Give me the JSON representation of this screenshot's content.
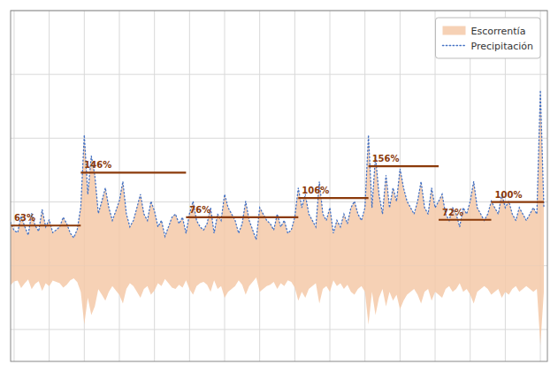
{
  "chart_data": {
    "type": "line",
    "x": [
      1859,
      1860,
      1861,
      1862,
      1863,
      1864,
      1865,
      1866,
      1867,
      1868,
      1869,
      1870,
      1871,
      1872,
      1873,
      1874,
      1875,
      1876,
      1877,
      1878,
      1879,
      1880,
      1881,
      1882,
      1883,
      1884,
      1885,
      1886,
      1887,
      1888,
      1889,
      1890,
      1891,
      1892,
      1893,
      1894,
      1895,
      1896,
      1897,
      1898,
      1899,
      1900,
      1901,
      1902,
      1903,
      1904,
      1905,
      1906,
      1907,
      1908,
      1909,
      1910,
      1911,
      1912,
      1913,
      1914,
      1915,
      1916,
      1917,
      1918,
      1919,
      1920,
      1921,
      1922,
      1923,
      1924,
      1925,
      1926,
      1927,
      1928,
      1929,
      1930,
      1931,
      1932,
      1933,
      1934,
      1935,
      1936,
      1937,
      1938,
      1939,
      1940,
      1941,
      1942,
      1943,
      1944,
      1945,
      1946,
      1947,
      1948,
      1949,
      1950,
      1951,
      1952,
      1953,
      1954,
      1955,
      1956,
      1957,
      1958,
      1959,
      1960,
      1961,
      1962,
      1963,
      1964,
      1965,
      1966,
      1967,
      1968,
      1969,
      1970,
      1971,
      1972,
      1973,
      1974,
      1975,
      1976,
      1977,
      1978,
      1979,
      1980,
      1981,
      1982,
      1983,
      1984,
      1985,
      1986,
      1987,
      1988,
      1989,
      1990,
      1991,
      1992,
      1993,
      1994,
      1995,
      1996,
      1997,
      1998,
      1999,
      2000,
      2001,
      2002,
      2003,
      2004,
      2005,
      2006,
      2007,
      2008,
      2009,
      2010,
      2011
    ],
    "series": [
      {
        "name": "Escorrentía",
        "type": "area",
        "color": "#f5c9a8",
        "values": [
          68,
          55,
          52,
          78,
          62,
          48,
          82,
          63,
          54,
          88,
          61,
          72,
          52,
          56,
          61,
          76,
          66,
          51,
          44,
          57,
          92,
          205,
          112,
          172,
          142,
          82,
          101,
          122,
          91,
          71,
          86,
          102,
          132,
          81,
          61,
          71,
          91,
          112,
          81,
          71,
          101,
          86,
          61,
          71,
          46,
          61,
          76,
          81,
          66,
          76,
          51,
          82,
          101,
          71,
          61,
          56,
          66,
          91,
          51,
          81,
          71,
          112,
          91,
          81,
          71,
          51,
          66,
          101,
          71,
          56,
          41,
          91,
          81,
          71,
          66,
          56,
          81,
          61,
          71,
          51,
          56,
          76,
          122,
          91,
          112,
          81,
          71,
          61,
          132,
          81,
          71,
          91,
          51,
          71,
          61,
          81,
          66,
          91,
          101,
          81,
          71,
          91,
          205,
          91,
          172,
          112,
          81,
          142,
          91,
          122,
          101,
          152,
          122,
          101,
          91,
          81,
          101,
          132,
          91,
          81,
          122,
          91,
          101,
          112,
          81,
          71,
          91,
          81,
          61,
          91,
          81,
          101,
          132,
          91,
          81,
          71,
          81,
          101,
          91,
          81,
          112,
          91,
          101,
          81,
          71,
          91,
          81,
          71,
          81,
          91,
          81,
          275,
          91
        ],
        "lower": [
          -30.6,
          -24.75,
          -23.4,
          -35.1,
          -27.9,
          -21.6,
          -36.9,
          -28.35,
          -24.3,
          -39.6,
          -27.45,
          -32.4,
          -23.4,
          -25.2,
          -27.45,
          -34.2,
          -29.7,
          -22.95,
          -19.8,
          -25.65,
          -41.4,
          -92.25,
          -50.4,
          -77.4,
          -63.9,
          -36.9,
          -45.45,
          -54.9,
          -40.95,
          -31.95,
          -38.7,
          -45.9,
          -59.4,
          -36.45,
          -27.45,
          -31.95,
          -40.95,
          -50.4,
          -36.45,
          -31.95,
          -45.45,
          -38.7,
          -27.45,
          -31.95,
          -20.7,
          -27.45,
          -34.2,
          -36.45,
          -29.7,
          -34.2,
          -22.95,
          -36.9,
          -45.45,
          -31.95,
          -27.45,
          -25.2,
          -29.7,
          -40.95,
          -22.95,
          -36.45,
          -31.95,
          -50.4,
          -40.95,
          -36.45,
          -31.95,
          -22.95,
          -29.7,
          -45.45,
          -31.95,
          -25.2,
          -18.45,
          -40.95,
          -36.45,
          -31.95,
          -29.7,
          -25.2,
          -36.45,
          -27.45,
          -31.95,
          -22.95,
          -25.2,
          -34.2,
          -54.9,
          -40.95,
          -50.4,
          -36.45,
          -31.95,
          -27.45,
          -59.4,
          -36.45,
          -31.95,
          -40.95,
          -22.95,
          -31.95,
          -27.45,
          -36.45,
          -29.7,
          -40.95,
          -45.45,
          -36.45,
          -31.95,
          -40.95,
          -92.25,
          -40.95,
          -77.4,
          -50.4,
          -36.45,
          -63.9,
          -40.95,
          -54.9,
          -45.45,
          -68.4,
          -54.9,
          -45.45,
          -40.95,
          -36.45,
          -45.45,
          -59.4,
          -40.95,
          -36.45,
          -54.9,
          -40.95,
          -45.45,
          -50.4,
          -36.45,
          -31.95,
          -40.95,
          -36.45,
          -27.45,
          -40.95,
          -36.45,
          -45.45,
          -59.4,
          -40.95,
          -36.45,
          -31.95,
          -36.45,
          -45.45,
          -40.95,
          -36.45,
          -50.4,
          -40.95,
          -45.45,
          -36.45,
          -31.95,
          -40.95,
          -36.45,
          -31.95,
          -36.45,
          -40.95,
          -36.45,
          -123.75,
          -40.95
        ]
      },
      {
        "name": "Precipitación",
        "type": "line",
        "color": "#4472c4",
        "line_style": "dotted",
        "values": [
          68,
          55,
          52,
          78,
          62,
          48,
          82,
          63,
          54,
          88,
          61,
          72,
          52,
          56,
          61,
          76,
          66,
          51,
          44,
          57,
          92,
          205,
          112,
          172,
          142,
          82,
          101,
          122,
          91,
          71,
          86,
          102,
          132,
          81,
          61,
          71,
          91,
          112,
          81,
          71,
          101,
          86,
          61,
          71,
          46,
          61,
          76,
          81,
          66,
          76,
          51,
          82,
          101,
          71,
          61,
          56,
          66,
          91,
          51,
          81,
          71,
          112,
          91,
          81,
          71,
          51,
          66,
          101,
          71,
          56,
          41,
          91,
          81,
          71,
          66,
          56,
          81,
          61,
          71,
          51,
          56,
          76,
          122,
          91,
          112,
          81,
          71,
          61,
          132,
          81,
          71,
          91,
          51,
          71,
          61,
          81,
          66,
          91,
          101,
          81,
          71,
          91,
          205,
          91,
          172,
          112,
          81,
          142,
          91,
          122,
          101,
          152,
          122,
          101,
          91,
          81,
          101,
          132,
          91,
          81,
          122,
          91,
          101,
          112,
          81,
          71,
          91,
          81,
          61,
          91,
          81,
          101,
          132,
          91,
          81,
          71,
          81,
          101,
          91,
          81,
          112,
          91,
          101,
          81,
          71,
          91,
          81,
          71,
          81,
          91,
          81,
          275,
          91
        ]
      }
    ],
    "annotations": [
      {
        "label": "63%",
        "value": 63,
        "start": 1859,
        "end": 1879,
        "color": "#8B3A0A"
      },
      {
        "label": "146%",
        "value": 146,
        "start": 1879,
        "end": 1909,
        "color": "#8B3A0A"
      },
      {
        "label": "76%",
        "value": 76,
        "start": 1909,
        "end": 1941,
        "color": "#8B3A0A"
      },
      {
        "label": "106%",
        "value": 106,
        "start": 1941,
        "end": 1961,
        "color": "#8B3A0A"
      },
      {
        "label": "156%",
        "value": 156,
        "start": 1961,
        "end": 1981,
        "color": "#8B3A0A"
      },
      {
        "label": "72%",
        "value": 72,
        "start": 1981,
        "end": 1996,
        "color": "#8B3A0A"
      },
      {
        "label": "100%",
        "value": 100,
        "start": 1996,
        "end": 2011,
        "color": "#8B3A0A"
      }
    ],
    "xlim": [
      1859,
      2012
    ],
    "ylim": [
      -150,
      400
    ],
    "xticks": [
      1860,
      1870,
      1880,
      1890,
      1900,
      1910,
      1920,
      1930,
      1940,
      1950,
      1960,
      1970,
      1980,
      1990,
      2000,
      2010
    ],
    "yticks": [
      -100,
      0,
      100,
      200,
      300,
      400
    ],
    "tick_labels": false,
    "grid": true,
    "legend": "upper right"
  }
}
